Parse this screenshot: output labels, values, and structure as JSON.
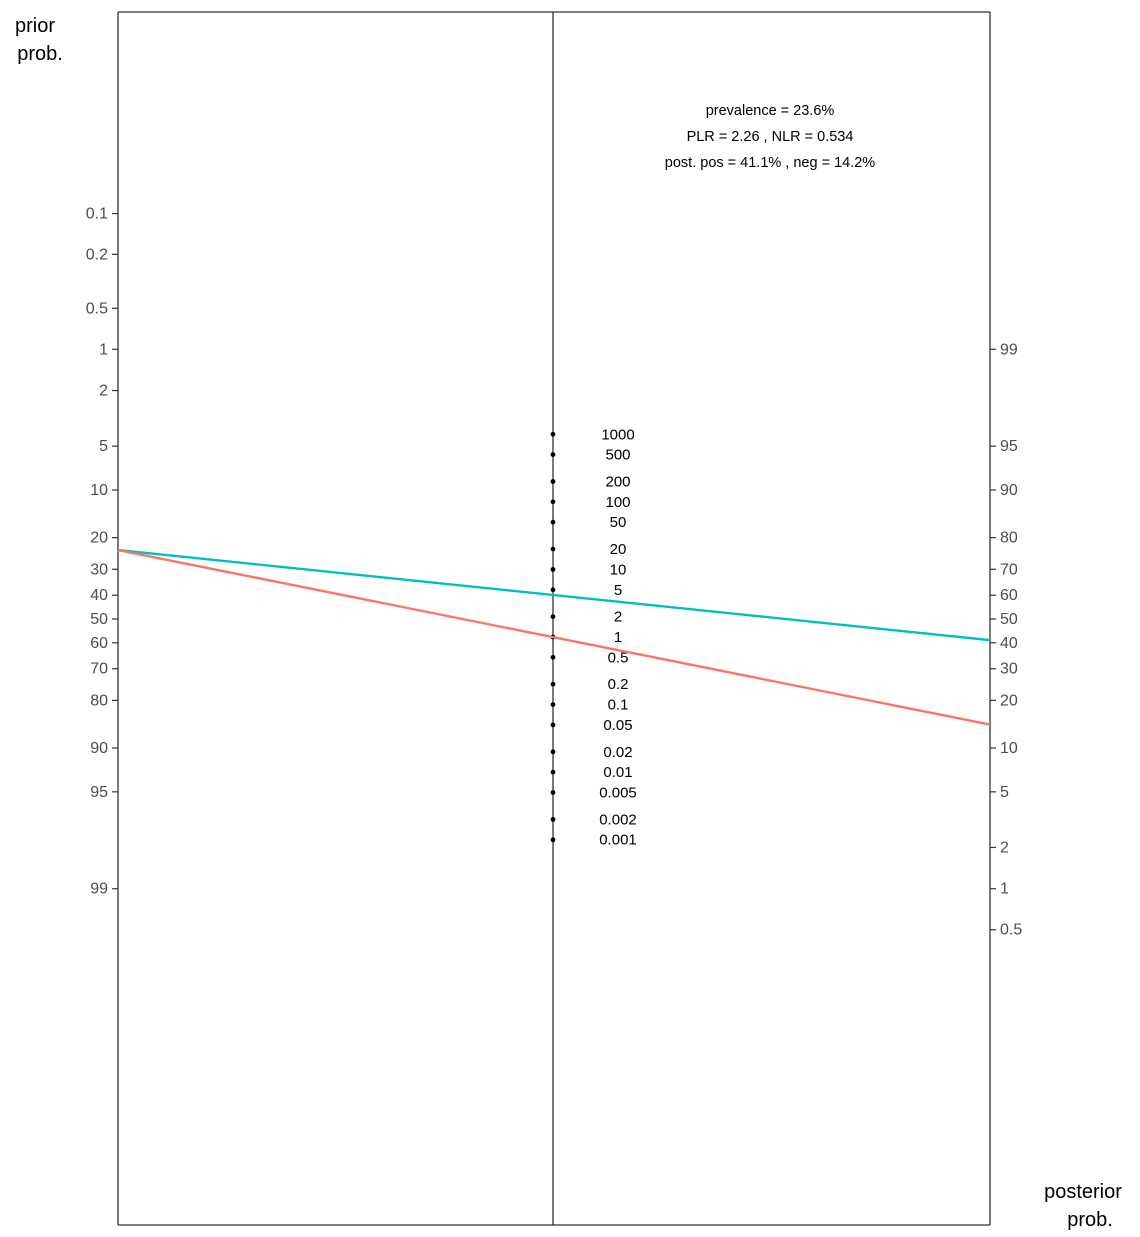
{
  "chart_data": {
    "type": "line",
    "title": "",
    "left_axis": {
      "label_lines": [
        "prior",
        "prob."
      ],
      "ticks": [
        "0.1",
        "0.2",
        "0.5",
        "1",
        "2",
        "5",
        "10",
        "20",
        "30",
        "40",
        "50",
        "60",
        "70",
        "80",
        "90",
        "95",
        "99"
      ]
    },
    "right_axis": {
      "label_lines": [
        "posterior",
        "prob."
      ],
      "ticks": [
        "99",
        "95",
        "90",
        "80",
        "70",
        "60",
        "50",
        "40",
        "30",
        "20",
        "10",
        "5",
        "2",
        "1",
        "0.5"
      ]
    },
    "likelihood_ratio_scale": [
      "1000",
      "500",
      "200",
      "100",
      "50",
      "20",
      "10",
      "5",
      "2",
      "1",
      "0.5",
      "0.2",
      "0.1",
      "0.05",
      "0.02",
      "0.01",
      "0.005",
      "0.002",
      "0.001"
    ],
    "annotation_lines": [
      "prevalence = 23.6%",
      "PLR = 2.26 , NLR = 0.534",
      "post. pos = 41.1% , neg = 14.2%"
    ],
    "prevalence_percent": 23.6,
    "series": [
      {
        "key": "positive",
        "prior_percent": 23.6,
        "likelihood_ratio": 2.26,
        "posterior_percent": 41.1,
        "color": "#00bfc4"
      },
      {
        "key": "negative",
        "prior_percent": 23.6,
        "likelihood_ratio": 0.534,
        "posterior_percent": 14.2,
        "color": "#f8766d"
      }
    ],
    "legend": "none",
    "grid": false
  }
}
